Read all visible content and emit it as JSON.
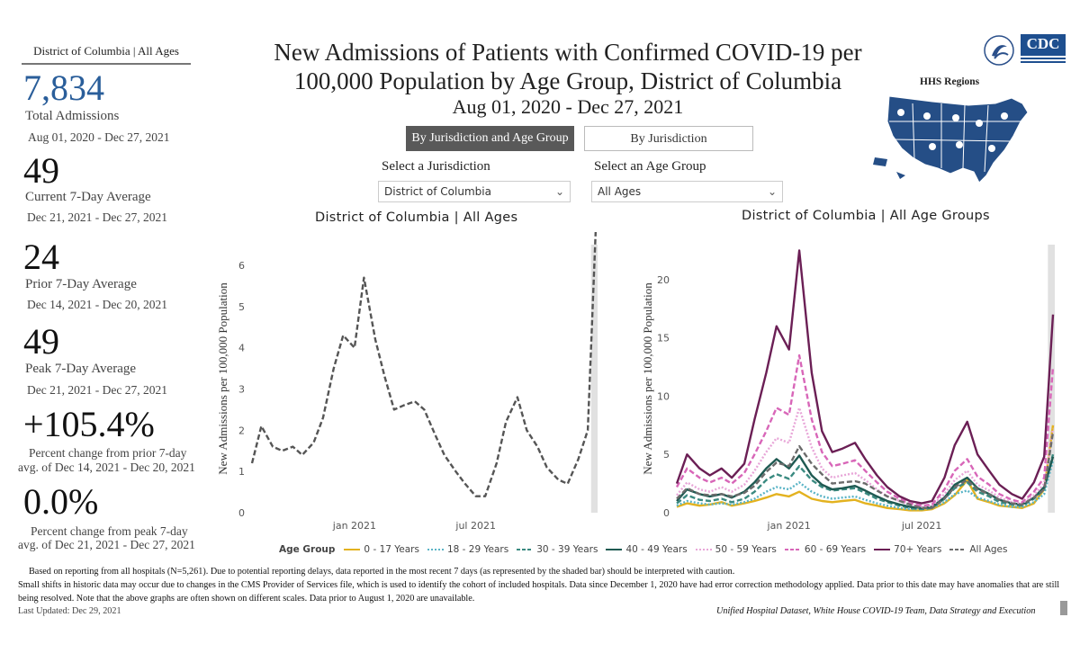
{
  "stats": {
    "header": "District of Columbia | All Ages",
    "total_value": "7,834",
    "total_label": "Total Admissions",
    "total_dates": "Aug 01, 2020 - Dec 27, 2021",
    "current_value": "49",
    "current_label": "Current 7-Day Average",
    "current_dates": "Dec 21, 2021 - Dec 27, 2021",
    "prior_value": "24",
    "prior_label": "Prior 7-Day Average",
    "prior_dates": "Dec 14, 2021 - Dec 20, 2021",
    "peak_value": "49",
    "peak_label": "Peak 7-Day Average",
    "peak_dates": "Dec 21, 2021 - Dec 27, 2021",
    "pct_prior_value": "+105.4%",
    "pct_prior_label1": "Percent change from prior 7-day",
    "pct_prior_label2": "avg. of Dec 14, 2021 - Dec 20, 2021",
    "pct_peak_value": "0.0%",
    "pct_peak_label1": "Percent change from peak 7-day",
    "pct_peak_label2": "avg. of Dec 21, 2021 - Dec 27, 2021"
  },
  "header": {
    "title_line1": "New Admissions of Patients with Confirmed COVID-19 per",
    "title_line2": "100,000 Population by Age Group, District of Columbia",
    "subtitle": "Aug 01, 2020 - Dec 27, 2021",
    "logo_text": "CDC",
    "map_label": "HHS Regions"
  },
  "controls": {
    "tab_active": "By Jurisdiction and Age Group",
    "tab_inactive": "By Jurisdiction",
    "jurisdiction_label": "Select a Jurisdiction",
    "jurisdiction_value": "District of Columbia",
    "age_label": "Select an Age Group",
    "age_value": "All Ages"
  },
  "legend": {
    "title": "Age Group"
  },
  "footer": {
    "line1": "Based on reporting from all hospitals (N=5,261). Due to potential reporting delays, data reported in the most recent 7 days (as represented by the shaded bar) should be interpreted with caution.",
    "line2": "Small shifts in historic data may occur due to changes in the CMS Provider of Services file, which is used to identify the cohort of included hospitals. Data since December 1, 2020 have had error correction methodology applied. Data prior to this date may have anomalies that are still",
    "line3": "being resolved. Note that the above graphs are often shown on different scales. Data prior to August 1, 2020 are unavailable.",
    "updated": "Last Updated: Dec 29, 2021",
    "source": "Unified Hospital Dataset, White House COVID-19 Team, Data Strategy and Execution"
  },
  "chart_data": [
    {
      "type": "line",
      "title": "District of Columbia | All Ages",
      "ylabel": "New Admissions per 100,000 Population",
      "ylim": [
        0,
        6.5
      ],
      "yticks": [
        "0",
        "1",
        "2",
        "3",
        "4",
        "5",
        "6"
      ],
      "xticks": [
        "jan 2021",
        "jul 2021"
      ],
      "x": [
        "2020-08-01",
        "2020-08-15",
        "2020-09-01",
        "2020-09-15",
        "2020-10-01",
        "2020-10-15",
        "2020-11-01",
        "2020-11-15",
        "2020-12-01",
        "2020-12-15",
        "2021-01-01",
        "2021-01-15",
        "2021-02-01",
        "2021-02-15",
        "2021-03-01",
        "2021-03-15",
        "2021-04-01",
        "2021-04-15",
        "2021-05-01",
        "2021-05-15",
        "2021-06-01",
        "2021-06-15",
        "2021-07-01",
        "2021-07-15",
        "2021-08-01",
        "2021-08-15",
        "2021-09-01",
        "2021-09-15",
        "2021-10-01",
        "2021-10-15",
        "2021-11-01",
        "2021-11-15",
        "2021-12-01",
        "2021-12-15",
        "2021-12-27"
      ],
      "series": [
        {
          "name": "All Ages",
          "color": "#555555",
          "dash": "dashed",
          "values": [
            1.2,
            2.1,
            1.6,
            1.5,
            1.6,
            1.4,
            1.7,
            2.3,
            3.5,
            4.3,
            4.0,
            5.7,
            4.2,
            3.3,
            2.5,
            2.6,
            2.7,
            2.5,
            1.9,
            1.4,
            1.0,
            0.7,
            0.4,
            0.4,
            1.2,
            2.2,
            2.8,
            2.0,
            1.6,
            1.1,
            0.8,
            0.7,
            1.3,
            2.0,
            6.9
          ]
        }
      ],
      "shaded_recent": true
    },
    {
      "type": "line",
      "title": "District of Columbia | All Age Groups",
      "ylabel": "New Admissions per 100,000 Population",
      "ylim": [
        0,
        23
      ],
      "yticks": [
        "0",
        "5",
        "10",
        "15",
        "20"
      ],
      "xticks": [
        "jan 2021",
        "jul 2021"
      ],
      "x": [
        "2020-08-01",
        "2020-08-15",
        "2020-09-01",
        "2020-09-15",
        "2020-10-01",
        "2020-10-15",
        "2020-11-01",
        "2020-11-15",
        "2020-12-01",
        "2020-12-15",
        "2021-01-01",
        "2021-01-15",
        "2021-02-01",
        "2021-02-15",
        "2021-03-01",
        "2021-03-15",
        "2021-04-01",
        "2021-04-15",
        "2021-05-01",
        "2021-05-15",
        "2021-06-01",
        "2021-06-15",
        "2021-07-01",
        "2021-07-15",
        "2021-08-01",
        "2021-08-15",
        "2021-09-01",
        "2021-09-15",
        "2021-10-01",
        "2021-10-15",
        "2021-11-01",
        "2021-11-15",
        "2021-12-01",
        "2021-12-15",
        "2021-12-27"
      ],
      "series": [
        {
          "name": "0 - 17 Years",
          "color": "#e3b21f",
          "dash": "solid",
          "values": [
            0.5,
            0.8,
            0.6,
            0.7,
            0.9,
            0.6,
            0.8,
            1.0,
            1.3,
            1.6,
            1.4,
            1.8,
            1.2,
            1.0,
            0.9,
            1.0,
            1.1,
            0.8,
            0.6,
            0.4,
            0.3,
            0.2,
            0.2,
            0.3,
            0.8,
            1.5,
            2.8,
            1.2,
            0.9,
            0.6,
            0.5,
            0.4,
            0.8,
            2.0,
            7.5
          ]
        },
        {
          "name": "18 - 29 Years",
          "color": "#5ab4c6",
          "dash": "dotted",
          "values": [
            0.6,
            1.0,
            0.8,
            0.7,
            0.8,
            0.7,
            0.9,
            1.2,
            1.8,
            2.2,
            2.0,
            2.6,
            1.8,
            1.4,
            1.2,
            1.3,
            1.4,
            1.1,
            0.8,
            0.6,
            0.4,
            0.3,
            0.3,
            0.4,
            0.9,
            1.6,
            1.9,
            1.3,
            1.0,
            0.7,
            0.5,
            0.5,
            0.9,
            1.6,
            4.5
          ]
        },
        {
          "name": "30 - 39 Years",
          "color": "#3a8a80",
          "dash": "dashed",
          "values": [
            0.8,
            1.5,
            1.1,
            1.0,
            1.2,
            0.9,
            1.2,
            1.8,
            2.8,
            3.3,
            2.9,
            4.0,
            2.8,
            2.2,
            1.9,
            2.0,
            2.1,
            1.7,
            1.2,
            0.9,
            0.6,
            0.4,
            0.3,
            0.4,
            1.2,
            2.1,
            2.6,
            1.8,
            1.4,
            0.9,
            0.7,
            0.6,
            1.2,
            2.0,
            5.0
          ]
        },
        {
          "name": "40 - 49 Years",
          "color": "#1f5a52",
          "dash": "solid",
          "values": [
            1.0,
            2.0,
            1.6,
            1.4,
            1.6,
            1.3,
            1.8,
            2.6,
            3.8,
            4.6,
            3.8,
            4.9,
            3.2,
            2.4,
            2.0,
            2.1,
            2.3,
            1.9,
            1.4,
            1.0,
            0.7,
            0.5,
            0.4,
            0.5,
            1.3,
            2.4,
            3.0,
            2.1,
            1.6,
            1.1,
            0.8,
            0.7,
            1.3,
            2.2,
            4.8
          ]
        },
        {
          "name": "50 - 59 Years",
          "color": "#e8a6d8",
          "dash": "dotted",
          "values": [
            1.5,
            2.6,
            2.0,
            1.8,
            2.2,
            1.8,
            2.4,
            3.6,
            5.2,
            6.4,
            6.0,
            9.0,
            5.6,
            3.8,
            3.0,
            3.2,
            3.4,
            2.8,
            2.0,
            1.4,
            1.0,
            0.7,
            0.5,
            0.6,
            1.6,
            2.8,
            3.6,
            2.4,
            1.9,
            1.3,
            0.9,
            0.8,
            1.5,
            2.5,
            7.2
          ]
        },
        {
          "name": "60 - 69 Years",
          "color": "#d866b8",
          "dash": "dashed",
          "values": [
            2.2,
            3.8,
            3.0,
            2.6,
            3.0,
            2.5,
            3.4,
            5.0,
            7.0,
            9.0,
            8.4,
            13.5,
            8.0,
            5.2,
            4.0,
            4.2,
            4.5,
            3.6,
            2.6,
            1.8,
            1.2,
            0.8,
            0.6,
            0.7,
            2.0,
            3.6,
            4.6,
            3.1,
            2.4,
            1.6,
            1.1,
            0.9,
            1.8,
            3.0,
            12.5
          ]
        },
        {
          "name": "70+ Years",
          "color": "#6b1f55",
          "dash": "solid",
          "values": [
            2.5,
            5.0,
            3.8,
            3.2,
            3.8,
            3.0,
            4.2,
            8.0,
            12.0,
            16.0,
            14.0,
            22.5,
            12.0,
            7.0,
            5.2,
            5.5,
            6.0,
            4.6,
            3.2,
            2.2,
            1.4,
            1.0,
            0.8,
            1.0,
            3.0,
            5.8,
            7.8,
            5.0,
            3.6,
            2.4,
            1.6,
            1.2,
            2.6,
            4.8,
            17.0
          ]
        },
        {
          "name": "All Ages",
          "color": "#6b6b6b",
          "dash": "dashed",
          "values": [
            1.2,
            2.1,
            1.6,
            1.5,
            1.6,
            1.4,
            1.7,
            2.3,
            3.5,
            4.3,
            4.0,
            5.7,
            4.2,
            3.3,
            2.5,
            2.6,
            2.7,
            2.5,
            1.9,
            1.4,
            1.0,
            0.7,
            0.4,
            0.4,
            1.2,
            2.2,
            2.8,
            2.0,
            1.6,
            1.1,
            0.8,
            0.7,
            1.3,
            2.0,
            6.9
          ]
        }
      ],
      "shaded_recent": true
    }
  ]
}
